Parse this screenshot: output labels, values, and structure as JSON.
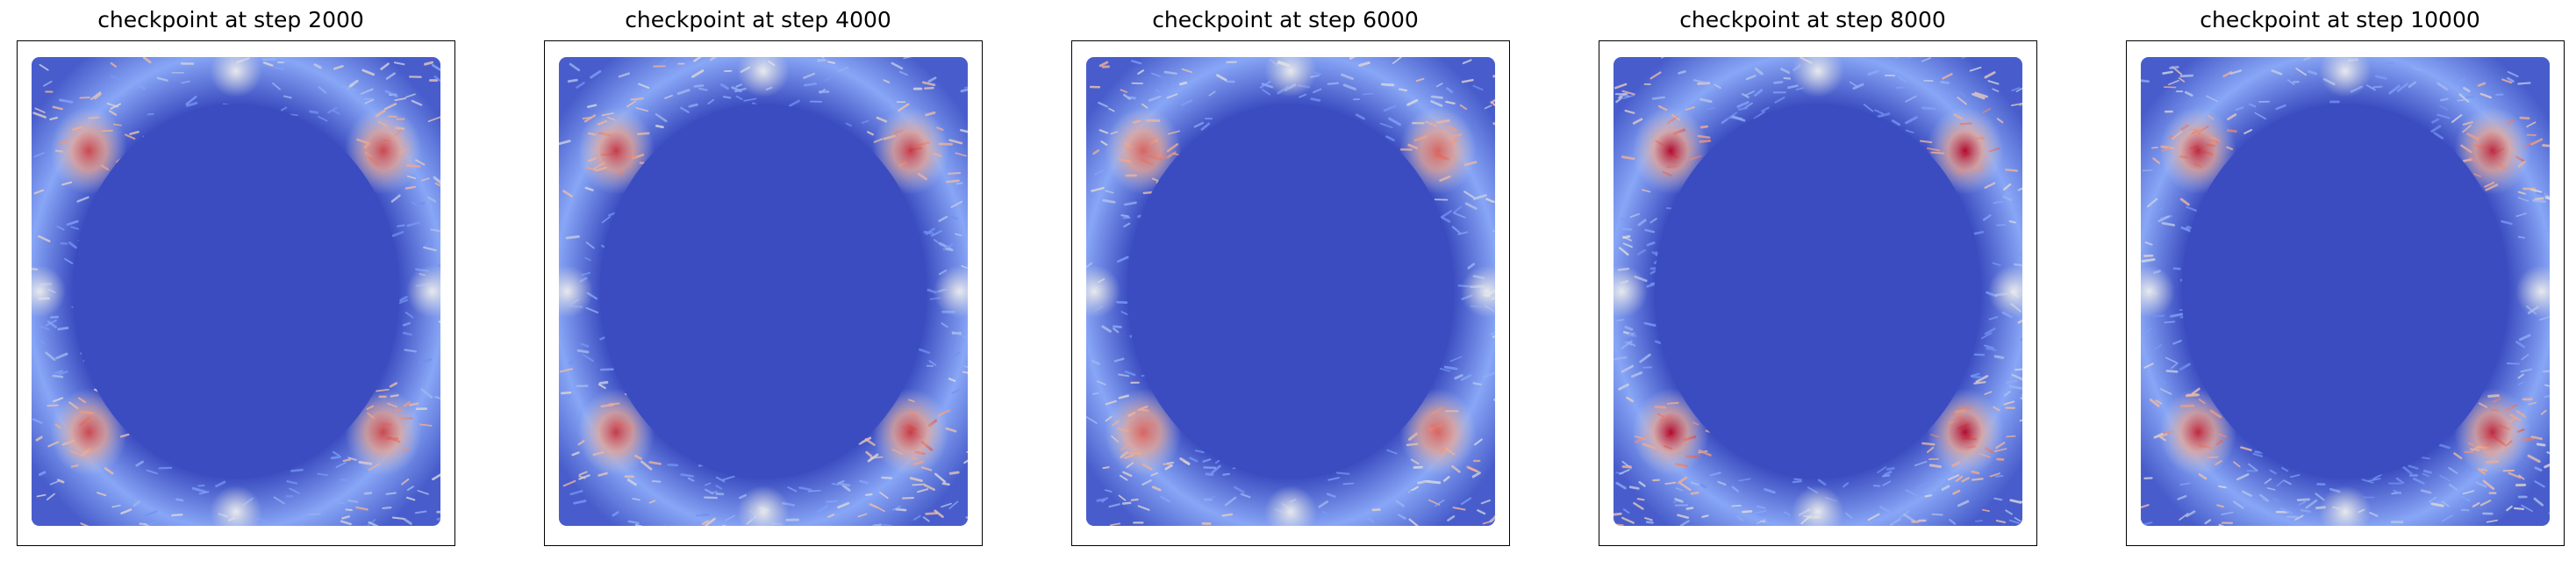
{
  "chart_data": [
    {
      "type": "heatmap",
      "title": "checkpoint at step 2000",
      "step": 2000,
      "colormap": "coolwarm",
      "axes_visible": false,
      "grid": false,
      "pattern": {
        "ring": true,
        "hot_spots": [
          "top-left",
          "top-right",
          "bottom-left",
          "bottom-right"
        ],
        "hot_spot_intensity": 0.9,
        "ring_noise": 0.55,
        "edge_highlights": [
          "top",
          "bottom",
          "left",
          "right"
        ]
      }
    },
    {
      "type": "heatmap",
      "title": "checkpoint at step 4000",
      "step": 4000,
      "colormap": "coolwarm",
      "axes_visible": false,
      "grid": false,
      "pattern": {
        "ring": true,
        "hot_spots": [
          "top-left",
          "top-right",
          "bottom-left",
          "bottom-right"
        ],
        "hot_spot_intensity": 0.92,
        "ring_noise": 0.6,
        "edge_highlights": [
          "top",
          "bottom",
          "left",
          "right"
        ]
      }
    },
    {
      "type": "heatmap",
      "title": "checkpoint at step 6000",
      "step": 6000,
      "colormap": "coolwarm",
      "axes_visible": false,
      "grid": false,
      "pattern": {
        "ring": true,
        "hot_spots": [
          "top-left",
          "top-right",
          "bottom-left",
          "bottom-right"
        ],
        "hot_spot_intensity": 0.85,
        "ring_noise": 0.62,
        "edge_highlights": [
          "top",
          "bottom",
          "left",
          "right"
        ]
      }
    },
    {
      "type": "heatmap",
      "title": "checkpoint at step 8000",
      "step": 8000,
      "colormap": "coolwarm",
      "axes_visible": false,
      "grid": false,
      "pattern": {
        "ring": true,
        "hot_spots": [
          "top-left",
          "top-right",
          "bottom-left",
          "bottom-right"
        ],
        "hot_spot_intensity": 1.0,
        "ring_noise": 0.72,
        "edge_highlights": [
          "top",
          "bottom",
          "left",
          "right"
        ]
      }
    },
    {
      "type": "heatmap",
      "title": "checkpoint at step 10000",
      "step": 10000,
      "colormap": "coolwarm",
      "axes_visible": false,
      "grid": false,
      "pattern": {
        "ring": true,
        "hot_spots": [
          "top-left",
          "top-right",
          "bottom-left",
          "bottom-right"
        ],
        "hot_spot_intensity": 0.95,
        "ring_noise": 0.68,
        "edge_highlights": [
          "top",
          "bottom",
          "left",
          "right"
        ]
      }
    }
  ]
}
